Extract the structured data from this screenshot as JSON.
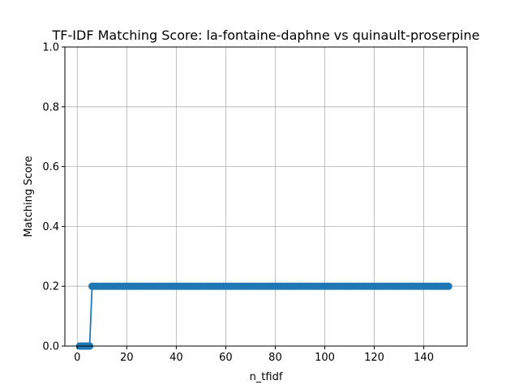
{
  "chart_data": {
    "type": "line",
    "title": "TF-IDF Matching Score: la-fontaine-daphne vs quinault-proserpine",
    "xlabel": "n_tfidf",
    "ylabel": "Matching Score",
    "xlim": [
      -5,
      157.5
    ],
    "ylim": [
      0,
      1
    ],
    "xticks": [
      0,
      20,
      40,
      60,
      80,
      100,
      120,
      140
    ],
    "xtick_labels": [
      "0",
      "20",
      "40",
      "60",
      "80",
      "100",
      "120",
      "140"
    ],
    "yticks": [
      0.0,
      0.2,
      0.4,
      0.6,
      0.8,
      1.0
    ],
    "ytick_labels": [
      "0.0",
      "0.2",
      "0.4",
      "0.6",
      "0.8",
      "1.0"
    ],
    "grid": true,
    "series": [
      {
        "color": "#1f77b4",
        "marker": "circle",
        "x": [
          1,
          2,
          3,
          4,
          5,
          6,
          7,
          8,
          9,
          10,
          11,
          12,
          13,
          14,
          15,
          16,
          17,
          18,
          19,
          20,
          21,
          22,
          23,
          24,
          25,
          26,
          27,
          28,
          29,
          30,
          31,
          32,
          33,
          34,
          35,
          36,
          37,
          38,
          39,
          40,
          41,
          42,
          43,
          44,
          45,
          46,
          47,
          48,
          49,
          50,
          51,
          52,
          53,
          54,
          55,
          56,
          57,
          58,
          59,
          60,
          61,
          62,
          63,
          64,
          65,
          66,
          67,
          68,
          69,
          70,
          71,
          72,
          73,
          74,
          75,
          76,
          77,
          78,
          79,
          80,
          81,
          82,
          83,
          84,
          85,
          86,
          87,
          88,
          89,
          90,
          91,
          92,
          93,
          94,
          95,
          96,
          97,
          98,
          99,
          100,
          101,
          102,
          103,
          104,
          105,
          106,
          107,
          108,
          109,
          110,
          111,
          112,
          113,
          114,
          115,
          116,
          117,
          118,
          119,
          120,
          121,
          122,
          123,
          124,
          125,
          126,
          127,
          128,
          129,
          130,
          131,
          132,
          133,
          134,
          135,
          136,
          137,
          138,
          139,
          140,
          141,
          142,
          143,
          144,
          145,
          146,
          147,
          148,
          149,
          150
        ],
        "y": [
          0,
          0,
          0,
          0,
          0,
          0.2,
          0.2,
          0.2,
          0.2,
          0.2,
          0.2,
          0.2,
          0.2,
          0.2,
          0.2,
          0.2,
          0.2,
          0.2,
          0.2,
          0.2,
          0.2,
          0.2,
          0.2,
          0.2,
          0.2,
          0.2,
          0.2,
          0.2,
          0.2,
          0.2,
          0.2,
          0.2,
          0.2,
          0.2,
          0.2,
          0.2,
          0.2,
          0.2,
          0.2,
          0.2,
          0.2,
          0.2,
          0.2,
          0.2,
          0.2,
          0.2,
          0.2,
          0.2,
          0.2,
          0.2,
          0.2,
          0.2,
          0.2,
          0.2,
          0.2,
          0.2,
          0.2,
          0.2,
          0.2,
          0.2,
          0.2,
          0.2,
          0.2,
          0.2,
          0.2,
          0.2,
          0.2,
          0.2,
          0.2,
          0.2,
          0.2,
          0.2,
          0.2,
          0.2,
          0.2,
          0.2,
          0.2,
          0.2,
          0.2,
          0.2,
          0.2,
          0.2,
          0.2,
          0.2,
          0.2,
          0.2,
          0.2,
          0.2,
          0.2,
          0.2,
          0.2,
          0.2,
          0.2,
          0.2,
          0.2,
          0.2,
          0.2,
          0.2,
          0.2,
          0.2,
          0.2,
          0.2,
          0.2,
          0.2,
          0.2,
          0.2,
          0.2,
          0.2,
          0.2,
          0.2,
          0.2,
          0.2,
          0.2,
          0.2,
          0.2,
          0.2,
          0.2,
          0.2,
          0.2,
          0.2,
          0.2,
          0.2,
          0.2,
          0.2,
          0.2,
          0.2,
          0.2,
          0.2,
          0.2,
          0.2,
          0.2,
          0.2,
          0.2,
          0.2,
          0.2,
          0.2,
          0.2,
          0.2,
          0.2,
          0.2,
          0.2,
          0.2,
          0.2,
          0.2,
          0.2,
          0.2,
          0.2,
          0.2,
          0.2,
          0.2
        ]
      }
    ]
  }
}
